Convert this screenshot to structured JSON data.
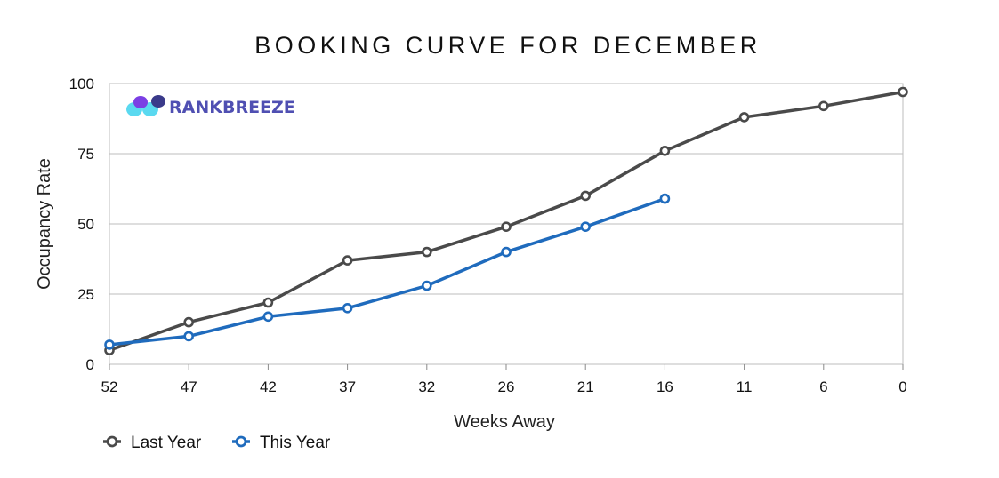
{
  "chart_data": {
    "type": "line",
    "title": "BOOKING CURVE FOR DECEMBER",
    "xlabel": "Weeks Away",
    "ylabel": "Occupancy Rate",
    "categories": [
      "52",
      "47",
      "42",
      "37",
      "32",
      "26",
      "21",
      "16",
      "11",
      "6",
      "0"
    ],
    "ylim": [
      0,
      100
    ],
    "yticks": [
      0,
      25,
      50,
      75,
      100
    ],
    "grid": true,
    "legend_position": "bottom-left",
    "series": [
      {
        "name": "Last Year",
        "color": "#4a4a4a",
        "values": [
          5,
          15,
          22,
          37,
          40,
          49,
          60,
          76,
          88,
          92,
          97
        ]
      },
      {
        "name": "This Year",
        "color": "#1f6bbd",
        "values": [
          7,
          10,
          17,
          20,
          28,
          40,
          49,
          59,
          null,
          null,
          null
        ]
      }
    ]
  },
  "logo": {
    "text": "RANKBREEZE",
    "icon": "rankbreeze-logo-icon"
  }
}
